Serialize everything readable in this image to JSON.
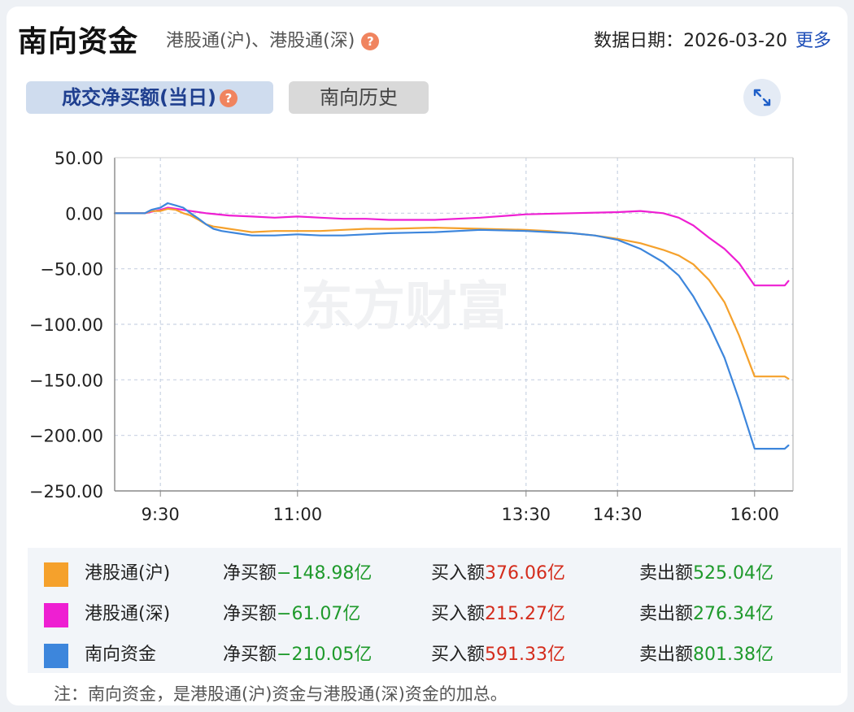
{
  "header": {
    "title": "南向资金",
    "subtitle": "港股通(沪)、港股通(深)",
    "help_glyph": "?",
    "date_label": "数据日期：",
    "date_value": "2026-03-20",
    "more_label": "更多"
  },
  "tabs": {
    "active_label": "成交净买额(当日)",
    "inactive_label": "南向历史"
  },
  "watermark": "东方财富",
  "chart_data": {
    "type": "line",
    "y_ticks": [
      "50.00",
      "0.00",
      "−50.00",
      "−100.00",
      "−150.00",
      "−200.00",
      "−250.00"
    ],
    "ylim": [
      -250,
      50
    ],
    "x_ticks": [
      "9:30",
      "11:00",
      "13:30",
      "14:30",
      "16:00"
    ],
    "grid": true,
    "series": [
      {
        "name": "港股通(沪)",
        "color": "#f5a12c",
        "points": [
          [
            9.0,
            0
          ],
          [
            9.33,
            0
          ],
          [
            9.4,
            2
          ],
          [
            9.5,
            2
          ],
          [
            9.58,
            4
          ],
          [
            9.67,
            3
          ],
          [
            9.75,
            0
          ],
          [
            9.83,
            -2
          ],
          [
            9.92,
            -6
          ],
          [
            10.0,
            -10
          ],
          [
            10.08,
            -12
          ],
          [
            10.17,
            -13
          ],
          [
            10.25,
            -14
          ],
          [
            10.33,
            -15
          ],
          [
            10.5,
            -17
          ],
          [
            10.75,
            -16
          ],
          [
            11.0,
            -16
          ],
          [
            11.25,
            -16
          ],
          [
            11.5,
            -15
          ],
          [
            11.75,
            -14
          ],
          [
            12.0,
            -14
          ],
          [
            12.5,
            -13
          ],
          [
            13.0,
            -14
          ],
          [
            13.5,
            -15
          ],
          [
            13.75,
            -16
          ],
          [
            14.0,
            -18
          ],
          [
            14.25,
            -20
          ],
          [
            14.5,
            -23
          ],
          [
            14.75,
            -27
          ],
          [
            15.0,
            -33
          ],
          [
            15.17,
            -38
          ],
          [
            15.33,
            -46
          ],
          [
            15.5,
            -60
          ],
          [
            15.67,
            -80
          ],
          [
            15.83,
            -110
          ],
          [
            16.0,
            -147
          ],
          [
            16.33,
            -147
          ],
          [
            16.37,
            -149
          ]
        ]
      },
      {
        "name": "港股通(深)",
        "color": "#ee1fd2",
        "points": [
          [
            9.0,
            0
          ],
          [
            9.33,
            0
          ],
          [
            9.5,
            3
          ],
          [
            9.58,
            5
          ],
          [
            9.67,
            4
          ],
          [
            9.75,
            3
          ],
          [
            9.83,
            2
          ],
          [
            10.0,
            0
          ],
          [
            10.25,
            -2
          ],
          [
            10.5,
            -3
          ],
          [
            10.75,
            -4
          ],
          [
            11.0,
            -3
          ],
          [
            11.25,
            -4
          ],
          [
            11.5,
            -5
          ],
          [
            11.75,
            -5
          ],
          [
            12.0,
            -6
          ],
          [
            12.5,
            -6
          ],
          [
            13.0,
            -4
          ],
          [
            13.5,
            -1
          ],
          [
            14.0,
            0
          ],
          [
            14.5,
            1
          ],
          [
            14.75,
            2
          ],
          [
            15.0,
            0
          ],
          [
            15.17,
            -4
          ],
          [
            15.33,
            -11
          ],
          [
            15.5,
            -22
          ],
          [
            15.67,
            -32
          ],
          [
            15.83,
            -45
          ],
          [
            16.0,
            -65
          ],
          [
            16.33,
            -65
          ],
          [
            16.37,
            -61
          ]
        ]
      },
      {
        "name": "南向资金",
        "color": "#3d86dc",
        "points": [
          [
            9.0,
            0
          ],
          [
            9.33,
            0
          ],
          [
            9.4,
            3
          ],
          [
            9.5,
            5
          ],
          [
            9.58,
            9
          ],
          [
            9.67,
            7
          ],
          [
            9.75,
            5
          ],
          [
            9.83,
            0
          ],
          [
            9.92,
            -5
          ],
          [
            10.0,
            -10
          ],
          [
            10.08,
            -14
          ],
          [
            10.17,
            -16
          ],
          [
            10.25,
            -17
          ],
          [
            10.33,
            -18
          ],
          [
            10.5,
            -20
          ],
          [
            10.75,
            -20
          ],
          [
            11.0,
            -19
          ],
          [
            11.25,
            -20
          ],
          [
            11.5,
            -20
          ],
          [
            11.75,
            -19
          ],
          [
            12.0,
            -18
          ],
          [
            12.5,
            -17
          ],
          [
            13.0,
            -15
          ],
          [
            13.5,
            -16
          ],
          [
            13.75,
            -17
          ],
          [
            14.0,
            -18
          ],
          [
            14.25,
            -20
          ],
          [
            14.5,
            -24
          ],
          [
            14.75,
            -32
          ],
          [
            15.0,
            -44
          ],
          [
            15.17,
            -56
          ],
          [
            15.33,
            -75
          ],
          [
            15.5,
            -100
          ],
          [
            15.67,
            -130
          ],
          [
            15.83,
            -168
          ],
          [
            16.0,
            -212
          ],
          [
            16.33,
            -212
          ],
          [
            16.37,
            -209
          ]
        ]
      }
    ]
  },
  "legend": {
    "net_label": "净买额",
    "buy_label": "买入额",
    "sell_label": "卖出额",
    "rows": [
      {
        "name": "港股通(沪)",
        "color": "#f5a12c",
        "net": "−148.98亿",
        "buy": "376.06亿",
        "sell": "525.04亿"
      },
      {
        "name": "港股通(深)",
        "color": "#ee1fd2",
        "net": "−61.07亿",
        "buy": "215.27亿",
        "sell": "276.34亿"
      },
      {
        "name": "南向资金",
        "color": "#3d86dc",
        "net": "−210.05亿",
        "buy": "591.33亿",
        "sell": "801.38亿"
      }
    ]
  },
  "footnote": "注：南向资金，是港股通(沪)资金与港股通(深)资金的加总。"
}
